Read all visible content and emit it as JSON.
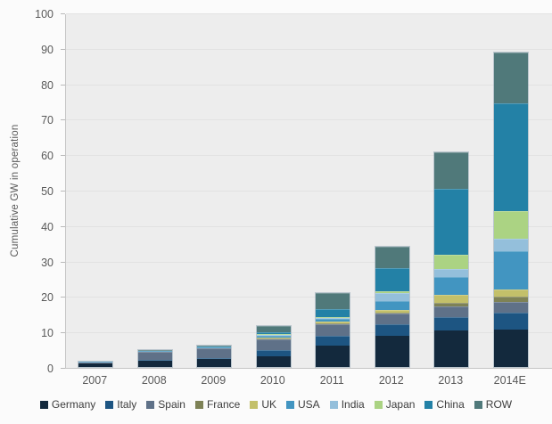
{
  "chart_data": {
    "type": "bar",
    "stacked": true,
    "title": "",
    "xlabel": "",
    "ylabel": "Cumulative GW in operation",
    "ylim": [
      0,
      100
    ],
    "yticks": [
      0,
      10,
      20,
      30,
      40,
      50,
      60,
      70,
      80,
      90,
      100
    ],
    "grid": true,
    "legend_position": "bottom",
    "categories": [
      "2007",
      "2008",
      "2009",
      "2010",
      "2011",
      "2012",
      "2013",
      "2014E"
    ],
    "series": [
      {
        "name": "Germany",
        "color": "#13293d",
        "values": [
          1.1,
          1.7,
          2.3,
          3.1,
          6.0,
          8.8,
          10.2,
          10.6
        ]
      },
      {
        "name": "Italy",
        "color": "#1d5582",
        "values": [
          0.0,
          0.1,
          0.1,
          1.8,
          2.9,
          3.3,
          4.0,
          4.8
        ]
      },
      {
        "name": "Spain",
        "color": "#5f7188",
        "values": [
          0.1,
          2.2,
          2.7,
          2.8,
          3.2,
          2.9,
          2.9,
          2.9
        ]
      },
      {
        "name": "France",
        "color": "#7e8256",
        "values": [
          0.0,
          0.0,
          0.0,
          0.1,
          0.3,
          0.4,
          1.1,
          1.5
        ]
      },
      {
        "name": "UK",
        "color": "#c3c06a",
        "values": [
          0.0,
          0.0,
          0.0,
          0.1,
          0.5,
          0.7,
          2.1,
          2.1
        ]
      },
      {
        "name": "USA",
        "color": "#4295c1",
        "values": [
          0.1,
          0.1,
          0.2,
          0.7,
          0.6,
          2.5,
          5.0,
          10.7
        ]
      },
      {
        "name": "India",
        "color": "#94bfdb",
        "values": [
          0.0,
          0.0,
          0.0,
          0.2,
          0.4,
          2.3,
          2.3,
          3.6
        ]
      },
      {
        "name": "Japan",
        "color": "#abd383",
        "values": [
          0.0,
          0.0,
          0.0,
          0.1,
          0.2,
          0.4,
          4.0,
          7.7
        ]
      },
      {
        "name": "China",
        "color": "#2381a6",
        "values": [
          0.0,
          0.0,
          0.1,
          0.3,
          2.3,
          6.7,
          18.7,
          30.6
        ]
      },
      {
        "name": "ROW",
        "color": "#50797a",
        "values": [
          0.0,
          0.1,
          0.2,
          1.8,
          4.4,
          5.9,
          10.2,
          14.1
        ]
      }
    ],
    "totals": [
      1.3,
      4.2,
      5.6,
      11.0,
      20.8,
      33.9,
      60.5,
      88.6
    ],
    "plot_bg_color": "#ededed",
    "grid_color": "#e2e2e2",
    "axis_color": "#c6c6c6",
    "tick_label_color": "#595959",
    "legend_text_color": "#3d3d3d"
  }
}
